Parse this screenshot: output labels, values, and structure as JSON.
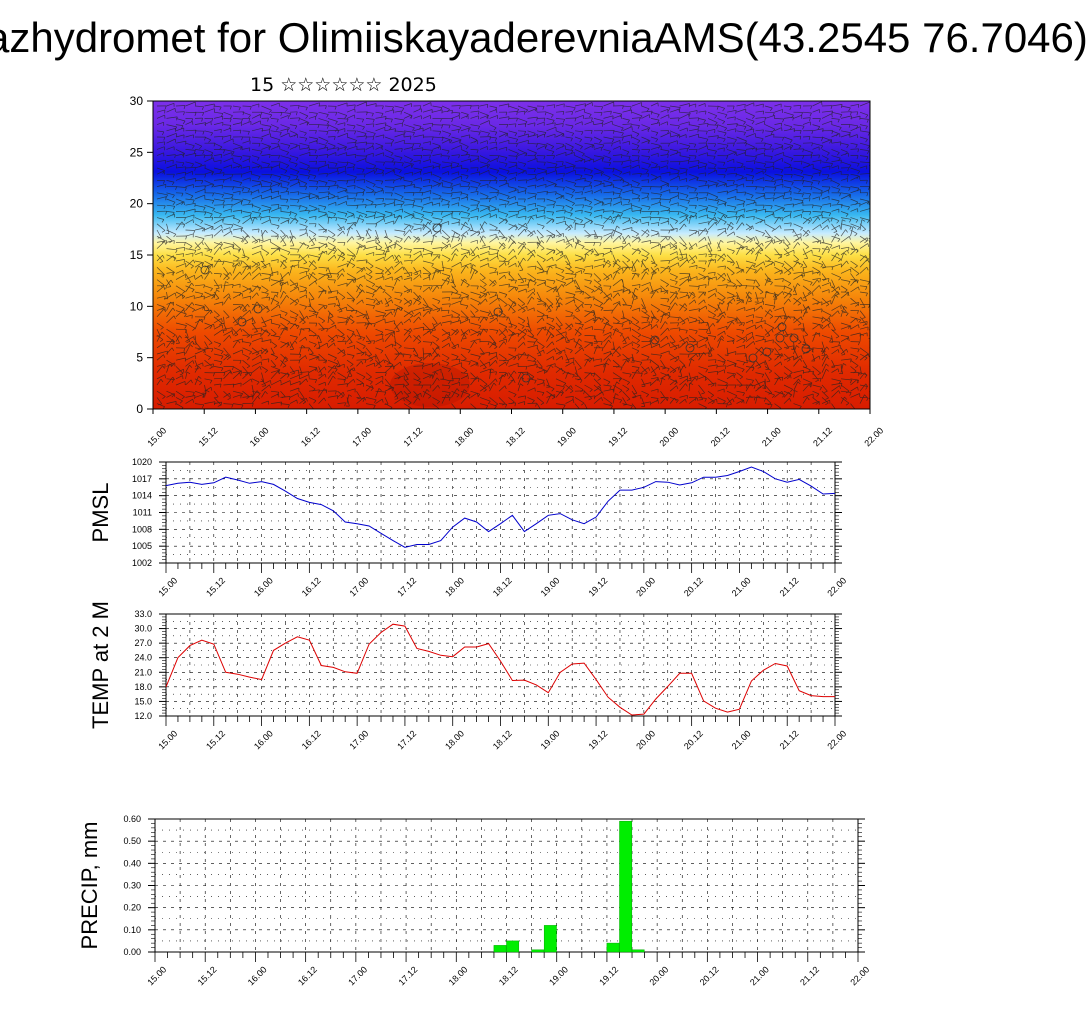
{
  "header": {
    "title": "azhydromet for OlimiiskayaderevniaAMS(43.2545 76.7046)",
    "subtitle": "15 ☆☆☆☆☆☆ 2025"
  },
  "time_labels": [
    "15.00",
    "15.12",
    "16.00",
    "16.12",
    "17.00",
    "17.12",
    "18.00",
    "18.12",
    "19.00",
    "19.12",
    "20.00",
    "20.12",
    "21.00",
    "21.12",
    "22.00"
  ],
  "colors": {
    "pmsl": "#0000cc",
    "temp": "#dd0000",
    "precip": "#00ee00"
  },
  "chart_data": [
    {
      "type": "heatmap",
      "ylim": [
        0,
        30
      ],
      "y_ticks": [
        "0",
        "5",
        "10",
        "15",
        "20",
        "25",
        "30"
      ],
      "x": [
        "15.00",
        "15.12",
        "16.00",
        "16.12",
        "17.00",
        "17.12",
        "18.00",
        "18.12",
        "19.00",
        "19.12",
        "20.00",
        "20.12",
        "21.00",
        "21.12",
        "22.00"
      ],
      "color_scale": [
        "red",
        "orange",
        "yellow",
        "light-blue",
        "blue",
        "purple"
      ],
      "overlay": "wind-barbs"
    },
    {
      "type": "line",
      "ylabel": "PMSL",
      "ylim": [
        1002,
        1020
      ],
      "y_ticks": [
        "1002",
        "1005",
        "1008",
        "1011",
        "1014",
        "1017",
        "1020"
      ],
      "x": [
        "15.00",
        "15.03",
        "15.06",
        "15.09",
        "15.12",
        "15.15",
        "15.18",
        "15.21",
        "16.00",
        "16.03",
        "16.06",
        "16.09",
        "16.12",
        "16.15",
        "16.18",
        "16.21",
        "17.00",
        "17.03",
        "17.06",
        "17.09",
        "17.12",
        "17.15",
        "17.18",
        "17.21",
        "18.00",
        "18.03",
        "18.06",
        "18.09",
        "18.12",
        "18.15",
        "18.18",
        "18.21",
        "19.00",
        "19.03",
        "19.06",
        "19.09",
        "19.12",
        "19.15",
        "19.18",
        "19.21",
        "20.00",
        "20.03",
        "20.06",
        "20.09",
        "20.12",
        "20.15",
        "20.18",
        "20.21",
        "21.00",
        "21.03",
        "21.06",
        "21.09",
        "21.12",
        "21.15",
        "21.18",
        "21.21",
        "22.00"
      ],
      "series": [
        {
          "values": [
            1015.8,
            1016.2,
            1016.4,
            1016.0,
            1016.3,
            1017.3,
            1016.8,
            1016.2,
            1016.5,
            1016.0,
            1014.8,
            1013.5,
            1012.8,
            1012.4,
            1011.3,
            1009.3,
            1009.0,
            1008.6,
            1007.3,
            1006.0,
            1004.8,
            1005.3,
            1005.3,
            1006.0,
            1008.4,
            1010.0,
            1009.3,
            1007.6,
            1009.0,
            1010.5,
            1007.6,
            1009.0,
            1010.5,
            1010.8,
            1009.7,
            1009.0,
            1010.2,
            1013.0,
            1015.0,
            1015.0,
            1015.5,
            1016.5,
            1016.4,
            1015.9,
            1016.3,
            1017.3,
            1017.3,
            1017.6,
            1018.3,
            1019.1,
            1018.3,
            1017.0,
            1016.4,
            1016.9,
            1015.7,
            1014.3,
            1014.4
          ]
        }
      ]
    },
    {
      "type": "line",
      "ylabel": "TEMP at 2 M",
      "ylim": [
        12,
        33
      ],
      "y_ticks": [
        "12.0",
        "15.0",
        "18.0",
        "21.0",
        "24.0",
        "27.0",
        "30.0",
        "33.0"
      ],
      "x": [
        "15.00",
        "15.03",
        "15.06",
        "15.09",
        "15.12",
        "15.15",
        "15.18",
        "15.21",
        "16.00",
        "16.03",
        "16.06",
        "16.09",
        "16.12",
        "16.15",
        "16.18",
        "16.21",
        "17.00",
        "17.03",
        "17.06",
        "17.09",
        "17.12",
        "17.15",
        "17.18",
        "17.21",
        "18.00",
        "18.03",
        "18.06",
        "18.09",
        "18.12",
        "18.15",
        "18.18",
        "18.21",
        "19.00",
        "19.03",
        "19.06",
        "19.09",
        "19.12",
        "19.15",
        "19.18",
        "19.21",
        "20.00",
        "20.03",
        "20.06",
        "20.09",
        "20.12",
        "20.15",
        "20.18",
        "20.21",
        "21.00",
        "21.03",
        "21.06",
        "21.09",
        "21.12",
        "21.15",
        "21.18",
        "21.21",
        "22.00"
      ],
      "series": [
        {
          "values": [
            18.0,
            24.0,
            26.5,
            27.6,
            26.8,
            21.0,
            20.6,
            20.0,
            19.5,
            25.5,
            27.0,
            28.3,
            27.6,
            22.4,
            22.0,
            21.1,
            20.8,
            26.8,
            29.2,
            30.9,
            30.5,
            25.9,
            25.3,
            24.5,
            24.2,
            26.2,
            26.2,
            26.9,
            23.3,
            19.3,
            19.4,
            18.4,
            16.8,
            21.0,
            22.7,
            22.9,
            19.5,
            15.9,
            13.8,
            12.2,
            12.4,
            15.5,
            18.1,
            20.8,
            20.8,
            15.1,
            13.6,
            12.8,
            13.4,
            19.2,
            21.4,
            22.8,
            22.3,
            17.2,
            16.2,
            16.0,
            16.0
          ]
        }
      ]
    },
    {
      "type": "bar",
      "ylabel": "PRECIP, mm",
      "ylim": [
        0,
        0.6
      ],
      "y_ticks": [
        "0.00",
        "0.10",
        "0.20",
        "0.30",
        "0.40",
        "0.50",
        "0.60"
      ],
      "x": [
        "18.09",
        "18.12",
        "18.18",
        "18.21",
        "19.12",
        "19.15",
        "19.18"
      ],
      "series": [
        {
          "values": [
            0.03,
            0.05,
            0.01,
            0.12,
            0.04,
            0.59,
            0.01
          ]
        }
      ]
    }
  ]
}
